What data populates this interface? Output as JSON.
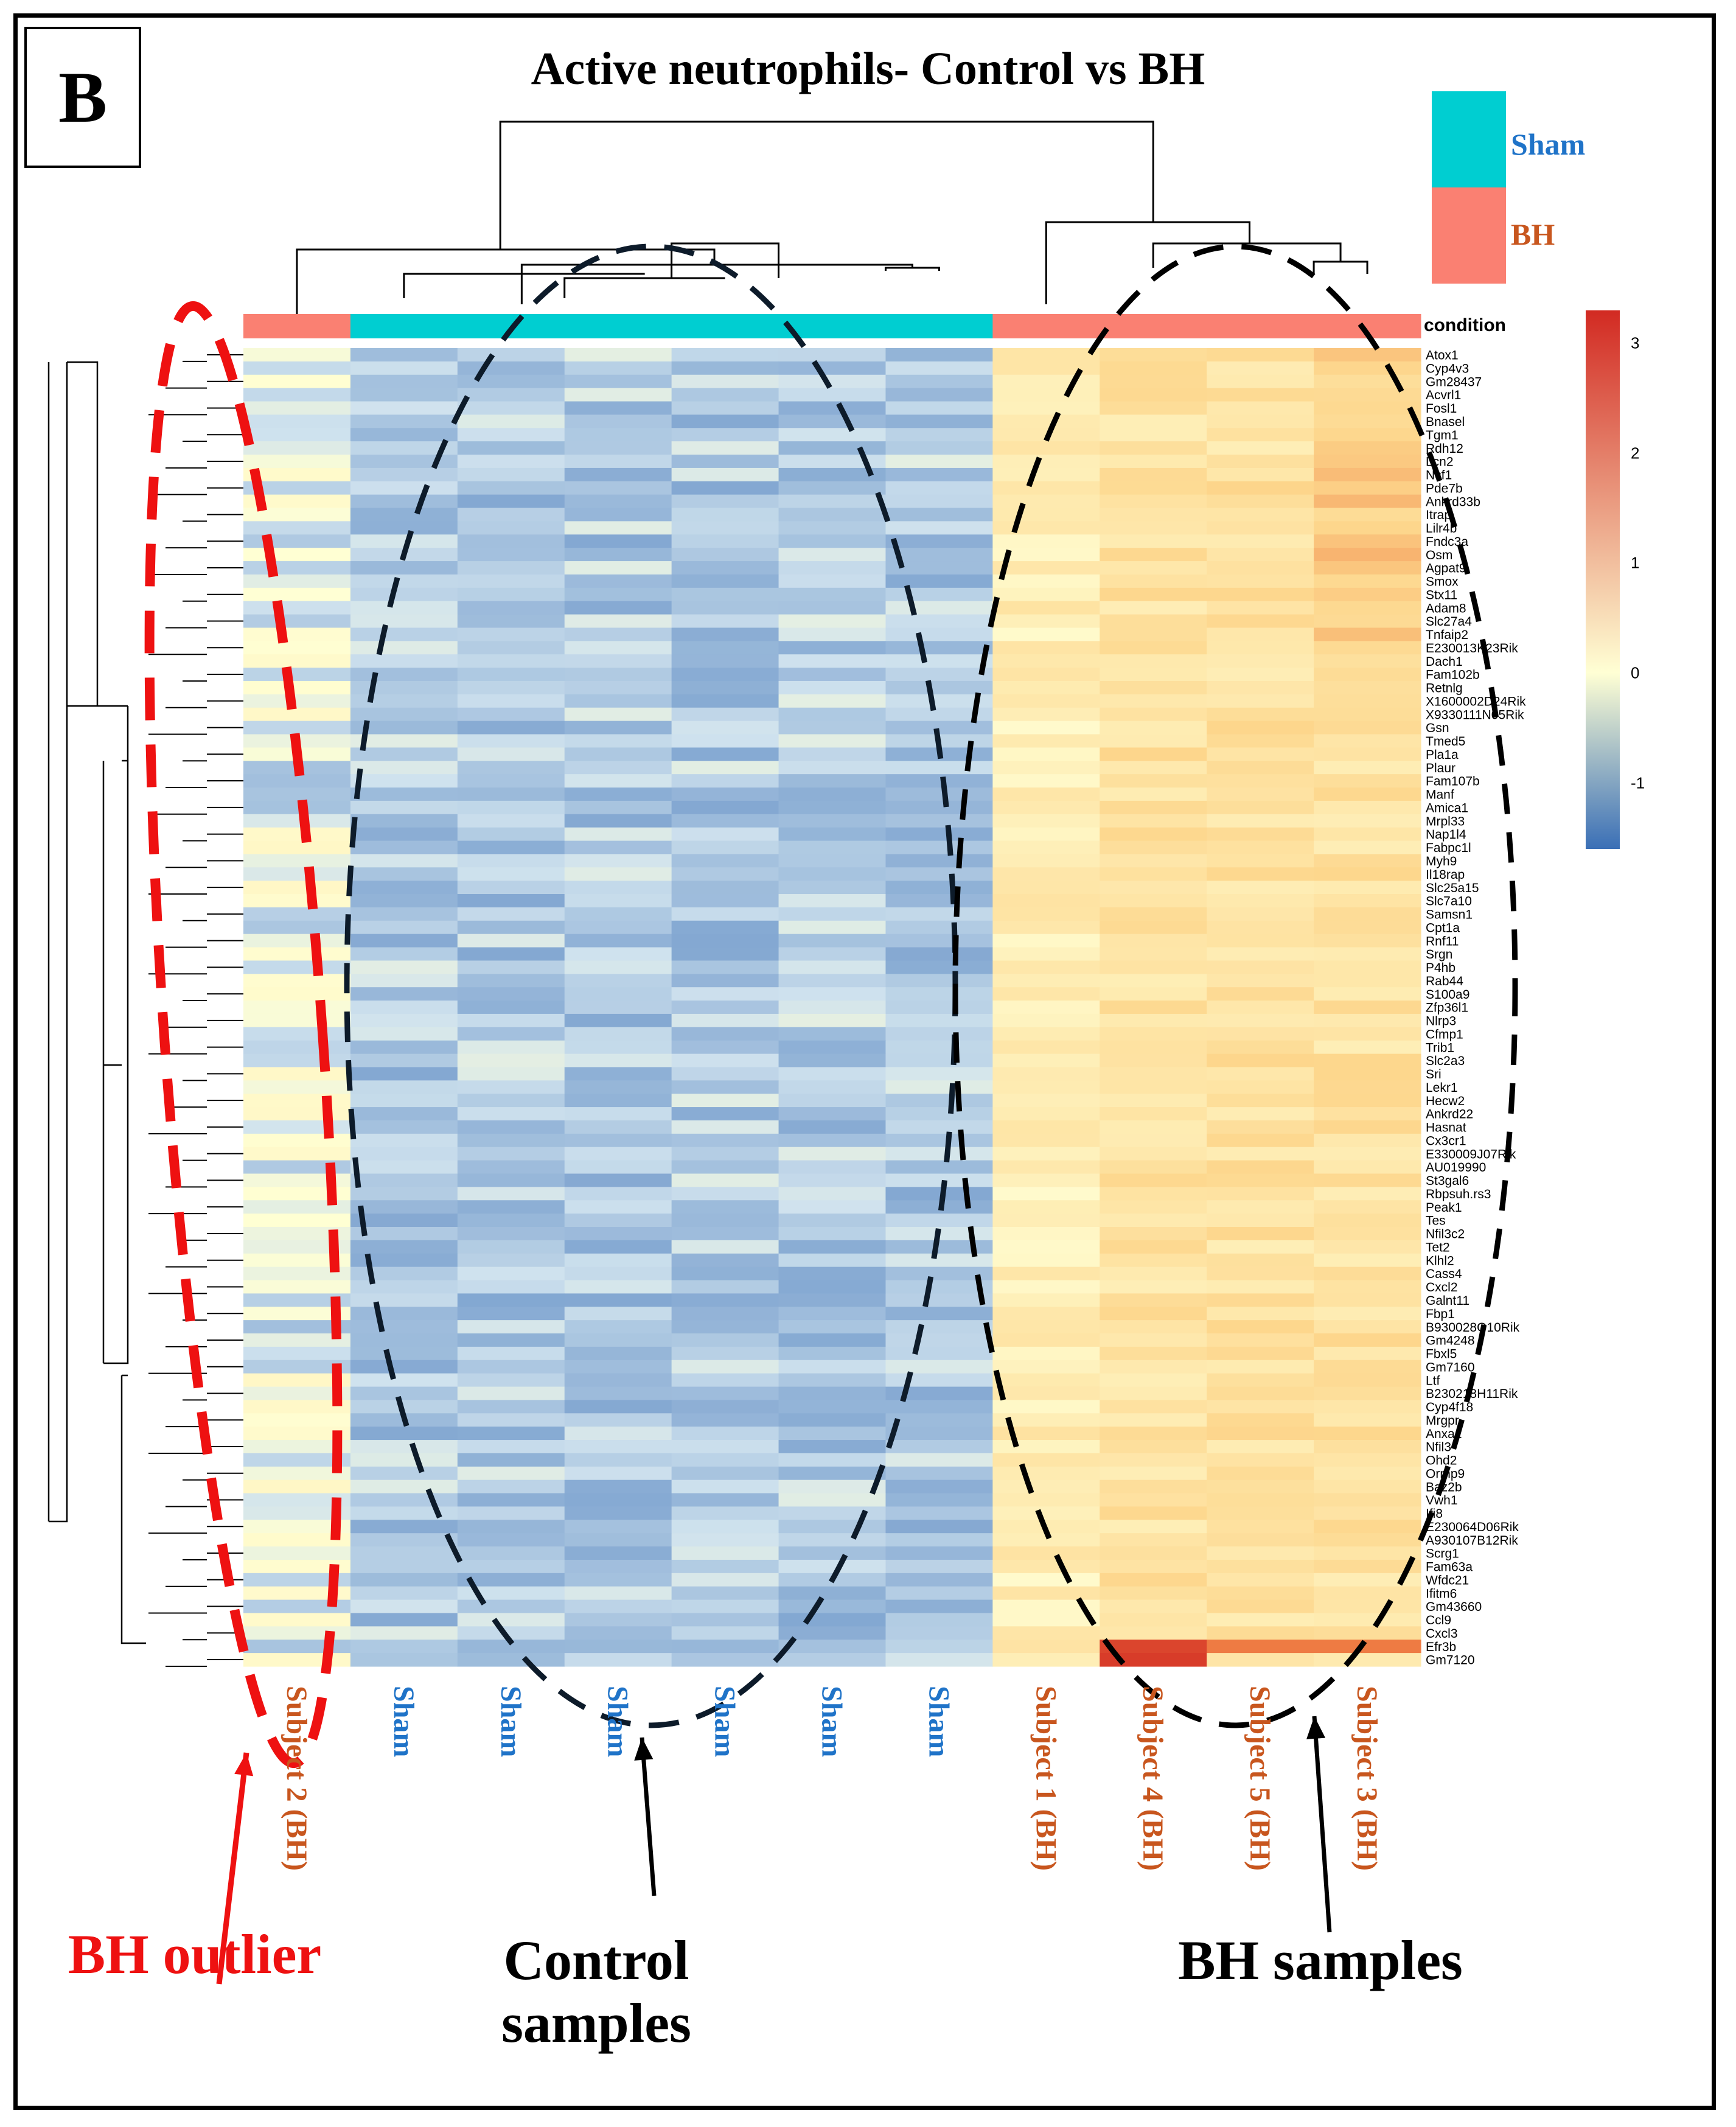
{
  "panel_letter": "B",
  "chart_data": {
    "type": "heatmap",
    "title": "Active neutrophils- Control vs BH",
    "annotation_name": "condition",
    "annotation_legend": [
      {
        "label": "Sham",
        "color": "#00CED1"
      },
      {
        "label": "BH",
        "color": "#FA8072"
      }
    ],
    "colorbar": {
      "min": -1.6,
      "max": 3.3,
      "ticks": [
        3,
        2,
        1,
        0,
        -1
      ],
      "colors": [
        "#3A6FB6",
        "#FFFFD4",
        "#D22A22"
      ]
    },
    "columns": [
      {
        "label": "Subject 2 (BH)",
        "condition": "BH"
      },
      {
        "label": "Sham",
        "condition": "Sham"
      },
      {
        "label": "Sham",
        "condition": "Sham"
      },
      {
        "label": "Sham",
        "condition": "Sham"
      },
      {
        "label": "Sham",
        "condition": "Sham"
      },
      {
        "label": "Sham",
        "condition": "Sham"
      },
      {
        "label": "Sham",
        "condition": "Sham"
      },
      {
        "label": "Subject 1 (BH)",
        "condition": "BH"
      },
      {
        "label": "Subject 4 (BH)",
        "condition": "BH"
      },
      {
        "label": "Subject 5 (BH)",
        "condition": "BH"
      },
      {
        "label": "Subject 3 (BH)",
        "condition": "BH"
      }
    ],
    "genes": [
      "Atox1",
      "Cyp4v3",
      "Gm28437",
      "Acvrl1",
      "Fosl1",
      "Bnasel",
      "Tgm1",
      "Rdh12",
      "Lcn2",
      "Ncf1",
      "Pde7b",
      "Ankrd33b",
      "Itrap",
      "Lilr4b",
      "Fndc3a",
      "Osm",
      "Agpat9",
      "Smox",
      "Stx11",
      "Adam8",
      "Slc27a4",
      "Tnfaip2",
      "E230013K23Rik",
      "Dach1",
      "Fam102b",
      "Retnlg",
      "X1600002D24Rik",
      "X9330111N05Rik",
      "Gsn",
      "Tmed5",
      "Pla1a",
      "Plaur",
      "Fam107b",
      "Manf",
      "Amica1",
      "Mrpl33",
      "Nap1l4",
      "Fabpc1l",
      "Myh9",
      "Il18rap",
      "Slc25a15",
      "Slc7a10",
      "Samsn1",
      "Cpt1a",
      "Rnf11",
      "Srgn",
      "P4hb",
      "Rab44",
      "S100a9",
      "Zfp36l1",
      "Nlrp3",
      "Cfmp1",
      "Trib1",
      "Slc2a3",
      "Sri",
      "Lekr1",
      "Hecw2",
      "Ankrd22",
      "Hasnat",
      "Cx3cr1",
      "E330009J07Rik",
      "AU019990",
      "St3gal6",
      "Rbpsuh.rs3",
      "Peak1",
      "Tes",
      "Nfil3c2",
      "Tet2",
      "Klhl2",
      "Cass4",
      "Cxcl2",
      "Galnt11",
      "Fbp1",
      "B930028O10Rik",
      "Gm4248",
      "Fbxl5",
      "Gm7160",
      "Ltf",
      "B230218H11Rik",
      "Cyp4f18",
      "Mrgpr",
      "Anxa1",
      "Nfil3",
      "Ohd2",
      "Ormp9",
      "Baz2b",
      "Vwh1",
      "Ifi8",
      "E230064D06Rik",
      "A930107B12Rik",
      "Scrg1",
      "Fam63a",
      "Wfdc21",
      "Ifitm6",
      "Gm43660",
      "Ccl9",
      "Cxcl3",
      "Efr3b",
      "Gm7120"
    ]
  },
  "annotations": {
    "outlier": "BH outlier",
    "control": "Control samples",
    "bh": "BH samples"
  }
}
